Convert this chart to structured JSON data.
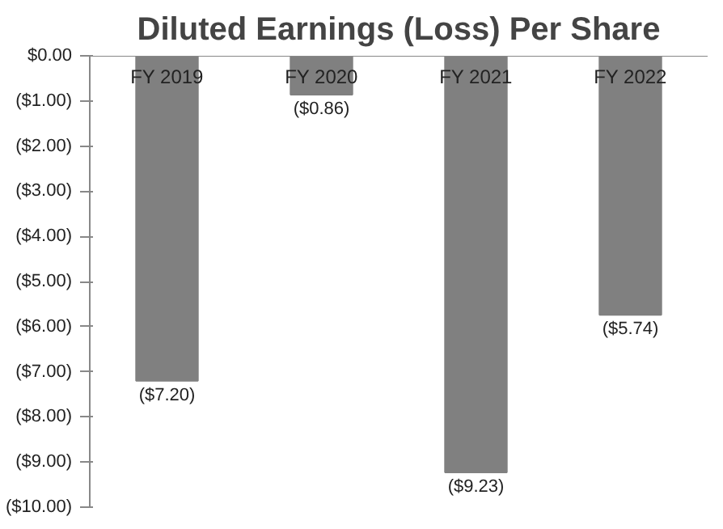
{
  "chart_data": {
    "type": "bar",
    "title": "Diluted Earnings (Loss) Per Share",
    "categories": [
      "FY 2019",
      "FY 2020",
      "FY 2021",
      "FY 2022"
    ],
    "values": [
      -7.2,
      -0.86,
      -9.23,
      -5.74
    ],
    "color": "#808080",
    "value_labels": [
      "($7.20)",
      "($0.86)",
      "($9.23)",
      "($5.74)"
    ],
    "ylim": [
      -10,
      0
    ],
    "yticks": [
      {
        "value": 0,
        "label": "$0.00"
      },
      {
        "value": -1,
        "label": "($1.00)"
      },
      {
        "value": -2,
        "label": "($2.00)"
      },
      {
        "value": -3,
        "label": "($3.00)"
      },
      {
        "value": -4,
        "label": "($4.00)"
      },
      {
        "value": -5,
        "label": "($5.00)"
      },
      {
        "value": -6,
        "label": "($6.00)"
      },
      {
        "value": -7,
        "label": "($7.00)"
      },
      {
        "value": -8,
        "label": "($8.00)"
      },
      {
        "value": -9,
        "label": "($9.00)"
      },
      {
        "value": -10,
        "label": "($10.00)"
      }
    ],
    "grid": false
  }
}
